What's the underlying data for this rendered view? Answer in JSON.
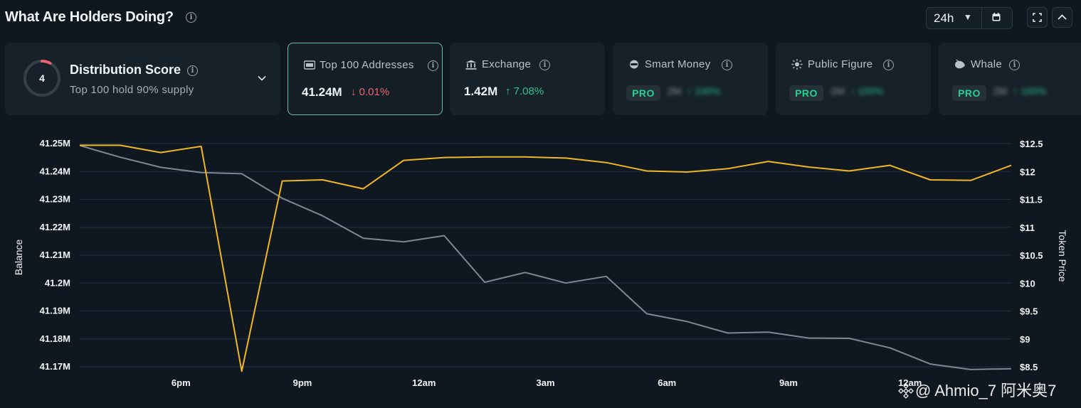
{
  "header": {
    "title": "What Are Holders Doing?",
    "range": "24h"
  },
  "cards": {
    "distribution": {
      "score": "4",
      "score_fraction": 0.08,
      "title": "Distribution Score",
      "subtitle": "Top 100 hold 90% supply"
    },
    "top100": {
      "title": "Top 100 Addresses",
      "value": "41.24M",
      "change": "0.01%"
    },
    "exchange": {
      "title": "Exchange",
      "value": "1.42M",
      "change": "7.08%"
    },
    "smart_money": {
      "title": "Smart Money",
      "badge": "PRO",
      "hidden_value": "2M",
      "hidden_change": "100%"
    },
    "public_figure": {
      "title": "Public Figure",
      "badge": "PRO",
      "hidden_value": "2M",
      "hidden_change": "100%"
    },
    "whale": {
      "title": "Whale",
      "badge": "PRO",
      "hidden_value": "2M",
      "hidden_change": "100%"
    }
  },
  "chart_data": {
    "type": "line",
    "ylabel_left": "Balance",
    "ylabel_right": "Token Price",
    "left_ticks": [
      "41.25M",
      "41.24M",
      "41.23M",
      "41.22M",
      "41.21M",
      "41.2M",
      "41.19M",
      "41.18M",
      "41.17M"
    ],
    "left_range": [
      41.17,
      41.25
    ],
    "right_ticks": [
      "$12.5",
      "$12",
      "$11.5",
      "$11",
      "$10.5",
      "$10",
      "$9.5",
      "$9",
      "$8.5"
    ],
    "right_range": [
      8.5,
      12.5
    ],
    "x_ticks": [
      "6pm",
      "9pm",
      "12am",
      "3am",
      "6am",
      "9am",
      "12am"
    ],
    "x_tick_index": [
      2.5,
      5.5,
      8.5,
      11.5,
      14.5,
      17.5,
      20.5
    ],
    "series": [
      {
        "name": "Balance",
        "axis": "left",
        "color": "#7d8893",
        "values": [
          41.2493,
          41.2451,
          41.2415,
          41.2396,
          41.2392,
          41.2304,
          41.2241,
          41.2161,
          41.2148,
          41.217,
          41.2003,
          41.2038,
          41.2,
          41.2024,
          41.189,
          41.1862,
          41.1821,
          41.1824,
          41.1803,
          41.1802,
          41.1768,
          41.171,
          41.169,
          41.1693
        ]
      },
      {
        "name": "Token Price",
        "axis": "right",
        "color": "#f0b623",
        "values": [
          12.47,
          12.47,
          12.34,
          12.45,
          8.42,
          11.83,
          11.85,
          11.69,
          12.2,
          12.25,
          12.26,
          12.26,
          12.24,
          12.16,
          12.01,
          11.99,
          12.05,
          12.18,
          12.08,
          12.01,
          12.11,
          11.85,
          11.84,
          12.11
        ]
      }
    ]
  },
  "watermark": {
    "text": "@ Ahmio_7 阿米奥7"
  }
}
